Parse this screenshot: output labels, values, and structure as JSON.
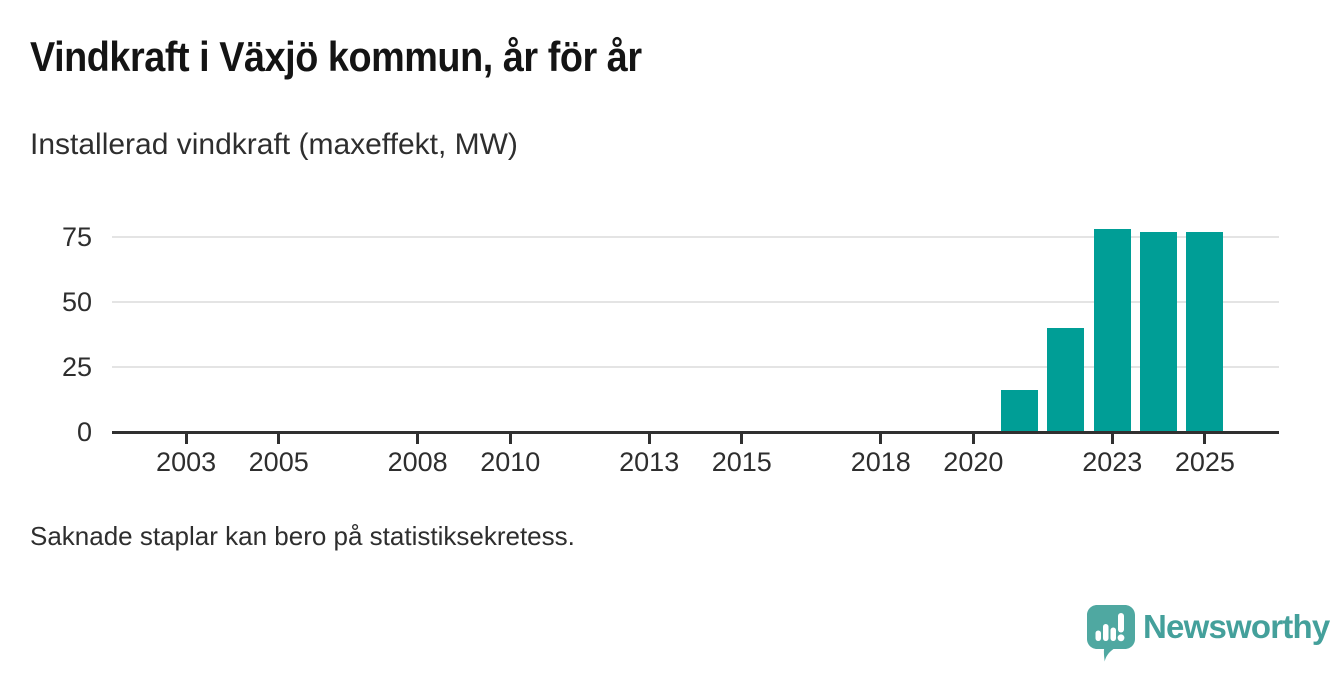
{
  "header": {
    "title": "Vindkraft i Växjö kommun, år för år",
    "subtitle": "Installerad vindkraft (maxeffekt, MW)"
  },
  "footer": {
    "note": "Saknade staplar kan bero på statistiksekretess.",
    "brand": "Newsworthy"
  },
  "icons": {
    "logo": "newsworthy-speech-bubble-bar-chart-icon"
  },
  "colors": {
    "bar": "#009e96",
    "grid": "#e4e4e4",
    "axis": "#303030",
    "title_text": "#141414",
    "body_text": "#2e2e2e",
    "logo": "#4fa8a1",
    "logo_text": "#44a09b"
  },
  "chart_data": {
    "type": "bar",
    "title": "Vindkraft i Växjö kommun, år för år",
    "subtitle": "Installerad vindkraft (maxeffekt, MW)",
    "ylabel": "Installerad vindkraft (maxeffekt, MW)",
    "xlabel": "",
    "x": [
      2021,
      2022,
      2023,
      2024,
      2025
    ],
    "values": [
      16,
      40,
      78,
      77,
      77
    ],
    "x_ticks": [
      2003,
      2005,
      2008,
      2010,
      2013,
      2015,
      2018,
      2020,
      2023,
      2025
    ],
    "x_tick_labels": [
      "2003",
      "2005",
      "2008",
      "2010",
      "2013",
      "2015",
      "2018",
      "2020",
      "2023",
      "2025"
    ],
    "y_ticks": [
      0,
      25,
      50,
      75
    ],
    "xlim": [
      2001.4,
      2026.6
    ],
    "ylim": [
      0,
      83
    ],
    "grid": "horizontal",
    "legend": "none"
  }
}
